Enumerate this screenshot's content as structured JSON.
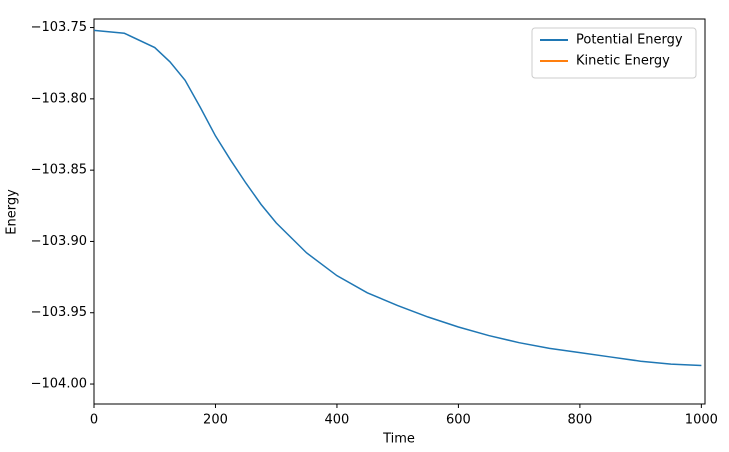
{
  "chart_data": {
    "type": "line",
    "xlabel": "Time",
    "ylabel": "Energy",
    "x": [
      0,
      50,
      100,
      125,
      150,
      175,
      200,
      225,
      250,
      275,
      300,
      350,
      400,
      450,
      500,
      550,
      600,
      650,
      700,
      750,
      800,
      850,
      900,
      950,
      1000
    ],
    "series": [
      {
        "name": "Potential Energy",
        "color": "#1f77b4",
        "values": [
          -103.752,
          -103.754,
          -103.764,
          -103.774,
          -103.787,
          -103.806,
          -103.826,
          -103.843,
          -103.859,
          -103.874,
          -103.887,
          -103.908,
          -103.924,
          -103.936,
          -103.945,
          -103.953,
          -103.96,
          -103.966,
          -103.971,
          -103.975,
          -103.978,
          -103.981,
          -103.984,
          -103.986,
          -103.987
        ]
      },
      {
        "name": "Kinetic Energy",
        "color": "#ff7f0e",
        "values": [
          null,
          null,
          null,
          null,
          null,
          null,
          null,
          null,
          null,
          null,
          null,
          null,
          null,
          null,
          null,
          null,
          null,
          null,
          null,
          null,
          null,
          null,
          null,
          null,
          null
        ]
      }
    ],
    "xlim": [
      0,
      1006
    ],
    "ylim": [
      -104.014,
      -103.744
    ],
    "xticks": [
      0,
      200,
      400,
      600,
      800,
      1000
    ],
    "yticks": [
      {
        "value": -103.75,
        "label": "−103.75"
      },
      {
        "value": -103.8,
        "label": "−103.80"
      },
      {
        "value": -103.85,
        "label": "−103.85"
      },
      {
        "value": -103.9,
        "label": "−103.90"
      },
      {
        "value": -103.95,
        "label": "−103.95"
      },
      {
        "value": -104.0,
        "label": "−104.00"
      }
    ],
    "legend": "upper right",
    "grid": false
  }
}
